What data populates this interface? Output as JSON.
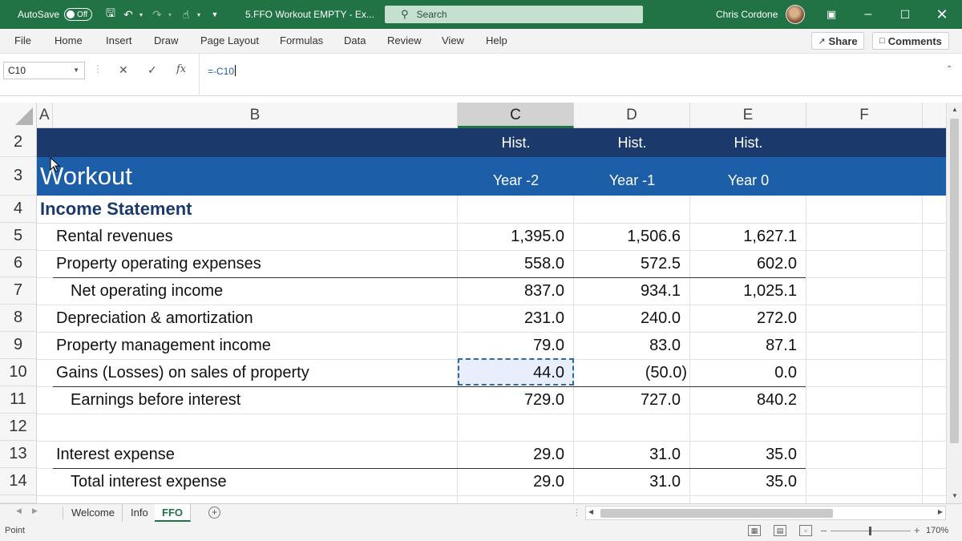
{
  "titlebar": {
    "autosave_label": "AutoSave",
    "autosave_state": "Off",
    "filename": "5.FFO Workout EMPTY  -  Ex...",
    "search_placeholder": "Search",
    "user_name": "Chris Cordone"
  },
  "ribbon": {
    "tabs": [
      "File",
      "Home",
      "Insert",
      "Draw",
      "Page Layout",
      "Formulas",
      "Data",
      "Review",
      "View",
      "Help"
    ],
    "share_label": "Share",
    "comments_label": "Comments"
  },
  "formula_bar": {
    "name_box": "C10",
    "formula": "=-C10",
    "fx_label": "fx"
  },
  "columns": [
    "A",
    "B",
    "C",
    "D",
    "E",
    "F"
  ],
  "rows": [
    {
      "num": "2",
      "label": "",
      "c": "Hist.",
      "d": "Hist.",
      "e": "Hist."
    },
    {
      "num": "3",
      "label": "Workout",
      "c": "Year -2",
      "d": "Year -1",
      "e": "Year 0"
    },
    {
      "num": "4",
      "label": "Income Statement",
      "c": "",
      "d": "",
      "e": ""
    },
    {
      "num": "5",
      "label": "Rental revenues",
      "c": "1,395.0",
      "d": "1,506.6",
      "e": "1,627.1"
    },
    {
      "num": "6",
      "label": "Property operating expenses",
      "c": "558.0",
      "d": "572.5",
      "e": "602.0"
    },
    {
      "num": "7",
      "label": "Net operating income",
      "c": "837.0",
      "d": "934.1",
      "e": "1,025.1"
    },
    {
      "num": "8",
      "label": "Depreciation & amortization",
      "c": "231.0",
      "d": "240.0",
      "e": "272.0"
    },
    {
      "num": "9",
      "label": "Property management income",
      "c": "79.0",
      "d": "83.0",
      "e": "87.1"
    },
    {
      "num": "10",
      "label": "Gains (Losses) on sales of property",
      "c": "44.0",
      "d": "(50.0)",
      "e": "0.0"
    },
    {
      "num": "11",
      "label": "Earnings before interest",
      "c": "729.0",
      "d": "727.0",
      "e": "840.2"
    },
    {
      "num": "12",
      "label": "",
      "c": "",
      "d": "",
      "e": ""
    },
    {
      "num": "13",
      "label": "Interest expense",
      "c": "29.0",
      "d": "31.0",
      "e": "35.0"
    },
    {
      "num": "14",
      "label": "Total interest expense",
      "c": "29.0",
      "d": "31.0",
      "e": "35.0"
    }
  ],
  "sheets": [
    "Welcome",
    "Info",
    "FFO"
  ],
  "active_sheet": "FFO",
  "status": {
    "mode": "Point",
    "zoom": "170%"
  },
  "colors": {
    "accent": "#217346",
    "band_dark": "#1b3a6b",
    "band_blue": "#1d5ea8"
  }
}
